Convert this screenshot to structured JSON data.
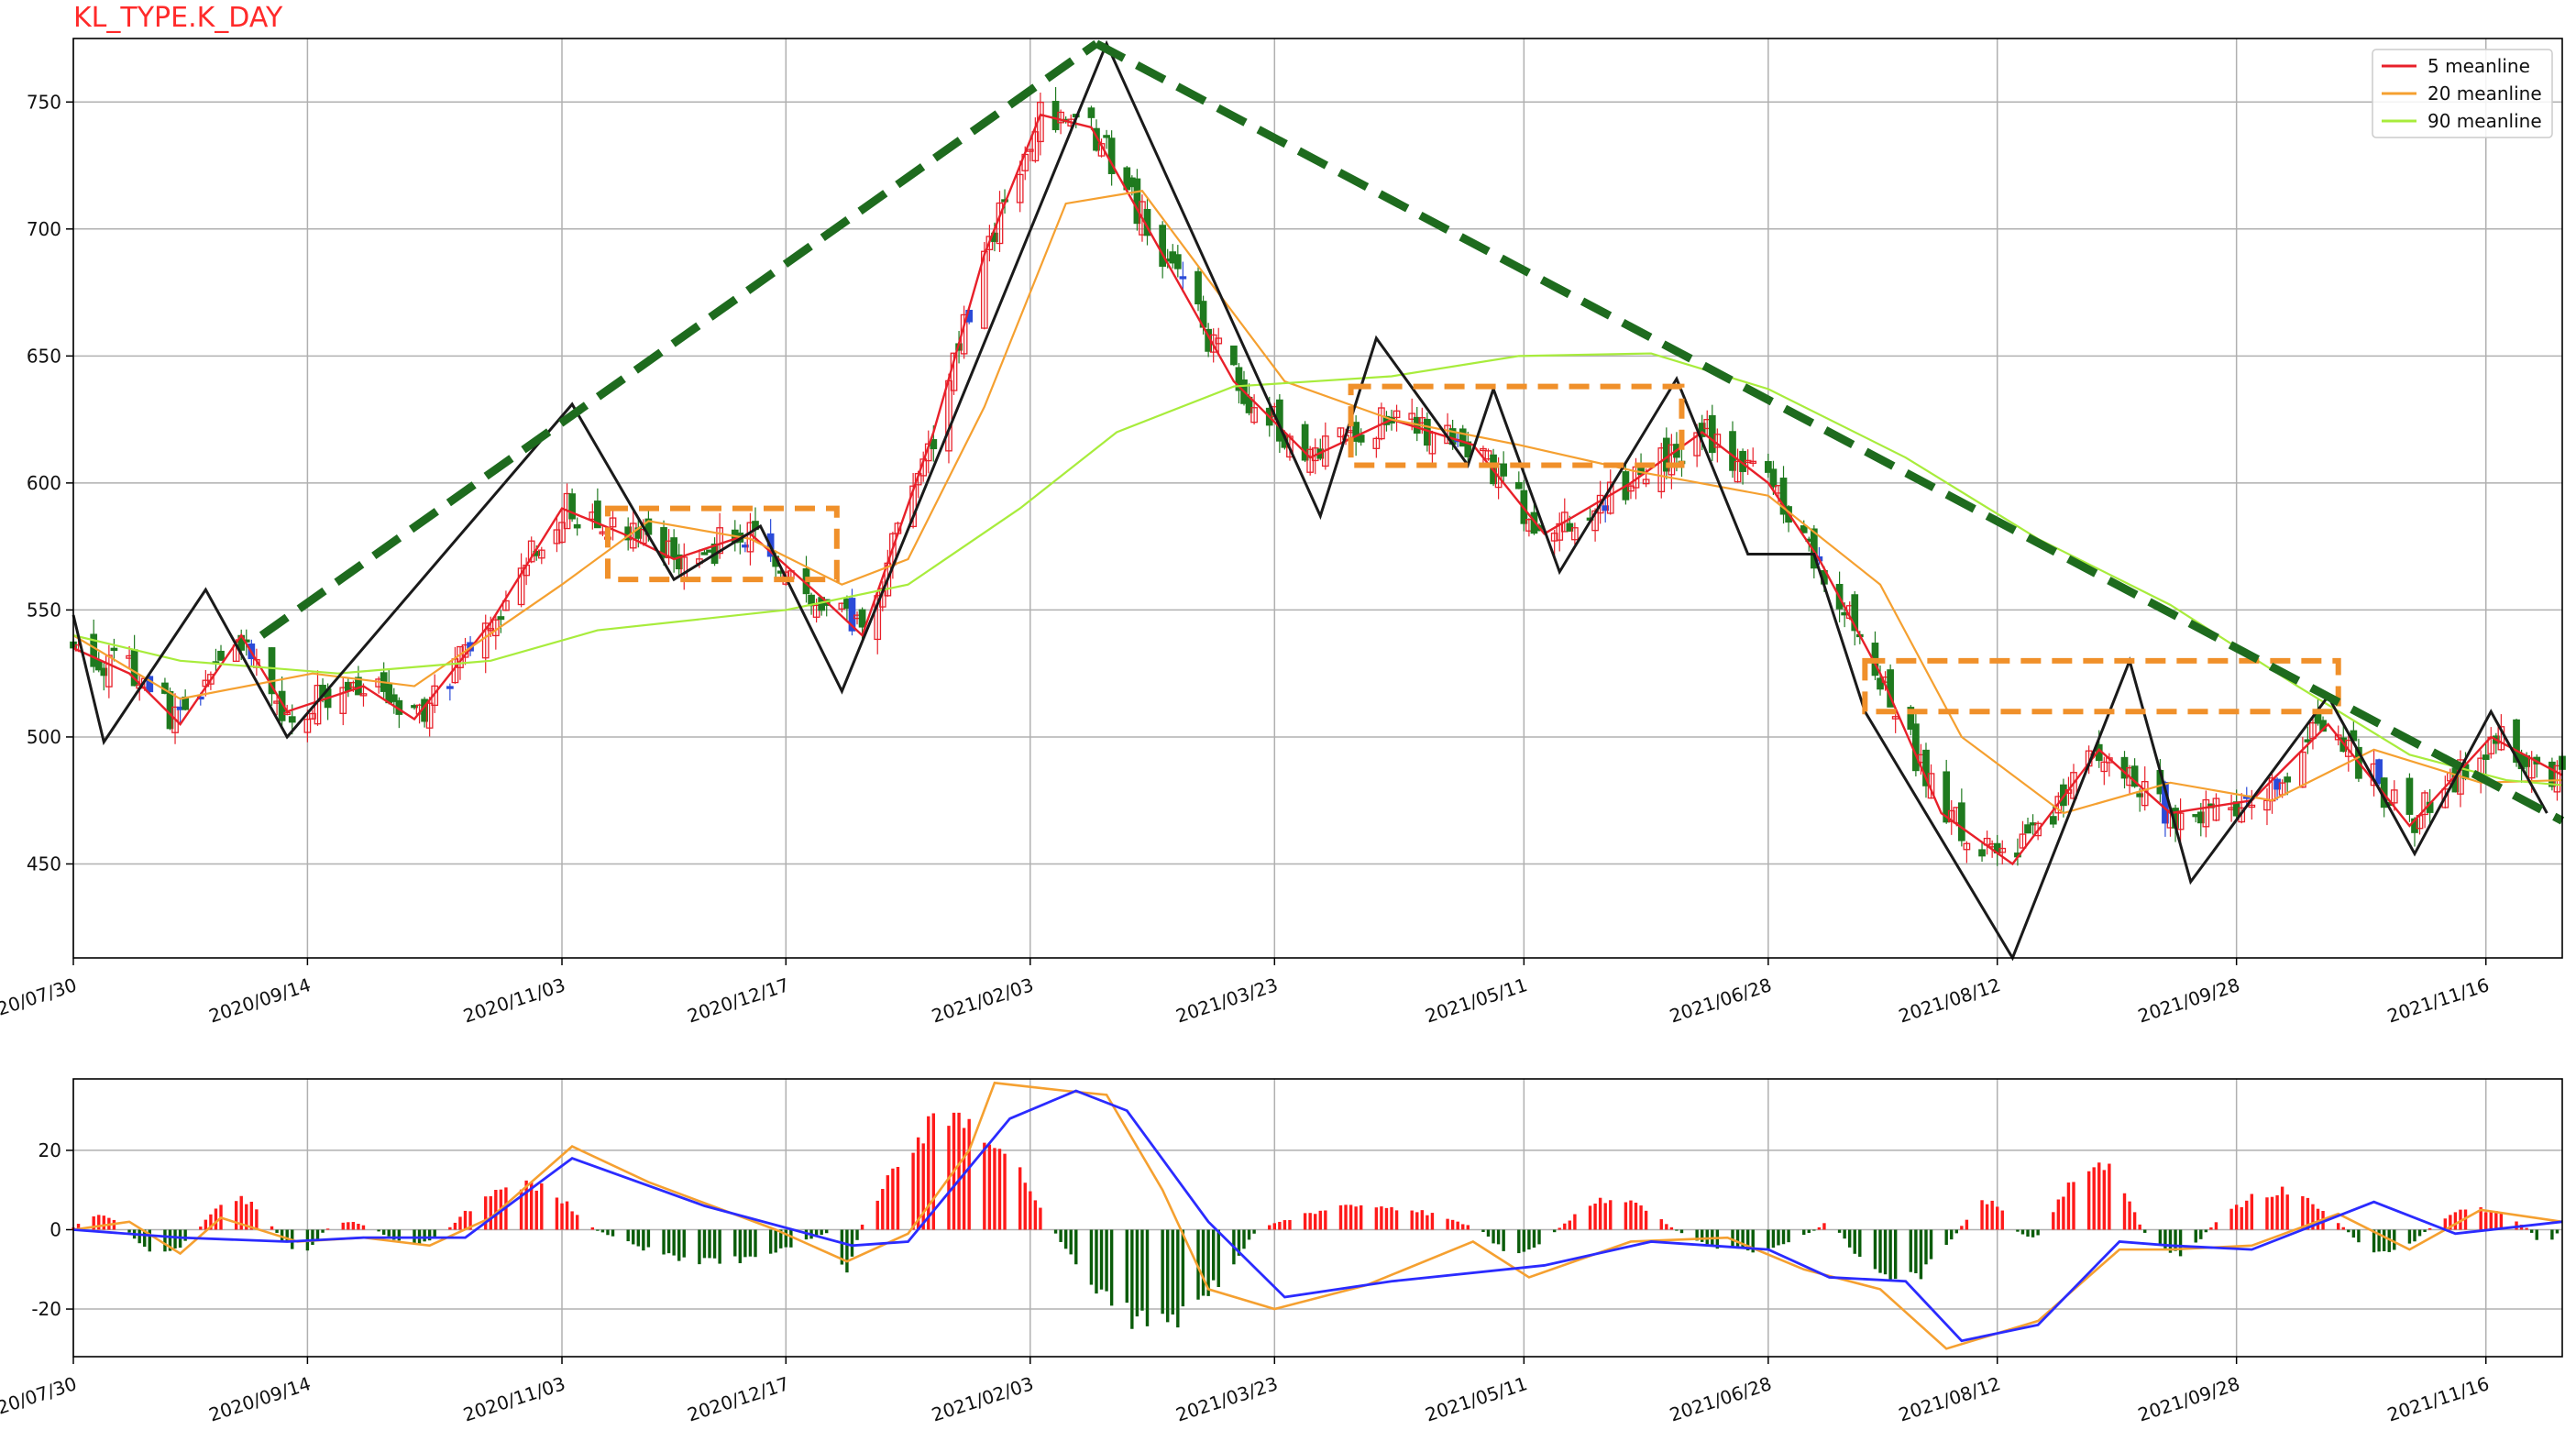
{
  "chart_data": [
    {
      "type": "candlestick",
      "title": "KL_TYPE.K_DAY",
      "x_ticks": [
        "2020/07/30",
        "2020/09/14",
        "2020/11/03",
        "2020/12/17",
        "2021/02/03",
        "2021/03/23",
        "2021/05/11",
        "2021/06/28",
        "2021/08/12",
        "2021/09/28",
        "2021/11/16"
      ],
      "y_ticks": [
        450,
        500,
        550,
        600,
        650,
        700,
        750
      ],
      "ylim": [
        413,
        775
      ],
      "grid": true,
      "legend_position": "top-right",
      "legend": [
        {
          "name": "5 meanline",
          "color": "#e8202a"
        },
        {
          "name": "20 meanline",
          "color": "#f5a030"
        },
        {
          "name": "90 meanline",
          "color": "#a8ec3c"
        }
      ],
      "colors": {
        "up": "#e8202a",
        "down": "#1f7a1f",
        "trend": "#1e6b1e",
        "zigzag": "#1a1a1a",
        "box": "#f0902a"
      },
      "zigzag": [
        {
          "date": "2020/07/30",
          "value": 548
        },
        {
          "date": "2020/08/05",
          "value": 498
        },
        {
          "date": "2020/08/25",
          "value": 558
        },
        {
          "date": "2020/09/10",
          "value": 500
        },
        {
          "date": "2020/11/05",
          "value": 631
        },
        {
          "date": "2020/11/25",
          "value": 562
        },
        {
          "date": "2020/12/12",
          "value": 583
        },
        {
          "date": "2020/12/28",
          "value": 518
        },
        {
          "date": "2021/02/18",
          "value": 773
        },
        {
          "date": "2021/04/01",
          "value": 587
        },
        {
          "date": "2021/04/12",
          "value": 657
        },
        {
          "date": "2021/04/30",
          "value": 607
        },
        {
          "date": "2021/05/05",
          "value": 637
        },
        {
          "date": "2021/05/18",
          "value": 565
        },
        {
          "date": "2021/06/10",
          "value": 641
        },
        {
          "date": "2021/06/24",
          "value": 572
        },
        {
          "date": "2021/07/07",
          "value": 572
        },
        {
          "date": "2021/07/17",
          "value": 510
        },
        {
          "date": "2021/08/15",
          "value": 413
        },
        {
          "date": "2021/09/07",
          "value": 530
        },
        {
          "date": "2021/09/19",
          "value": 443
        },
        {
          "date": "2021/10/16",
          "value": 516
        },
        {
          "date": "2021/11/02",
          "value": 454
        },
        {
          "date": "2021/11/17",
          "value": 510
        },
        {
          "date": "2021/11/28",
          "value": 470
        }
      ],
      "trend_lines": [
        {
          "from": {
            "date": "2020/09/05",
            "value": 540
          },
          "to": {
            "date": "2021/02/16",
            "value": 773
          }
        },
        {
          "from": {
            "date": "2021/02/16",
            "value": 773
          },
          "to": {
            "date": "2021/12/01",
            "value": 467
          }
        }
      ],
      "boxes": [
        {
          "x0": "2020/11/12",
          "x1": "2020/12/27",
          "y0": 562,
          "y1": 590
        },
        {
          "x0": "2021/04/07",
          "x1": "2021/06/11",
          "y0": 607,
          "y1": 638
        },
        {
          "x0": "2021/07/17",
          "x1": "2021/10/18",
          "y0": 510,
          "y1": 530
        }
      ],
      "series": [
        {
          "name": "5 meanline",
          "color": "#e8202a",
          "points": [
            [
              "2020/07/30",
              535
            ],
            [
              "2020/08/10",
              525
            ],
            [
              "2020/08/20",
              505
            ],
            [
              "2020/09/01",
              540
            ],
            [
              "2020/09/10",
              510
            ],
            [
              "2020/09/25",
              520
            ],
            [
              "2020/10/05",
              507
            ],
            [
              "2020/10/20",
              545
            ],
            [
              "2020/11/03",
              590
            ],
            [
              "2020/11/15",
              580
            ],
            [
              "2020/11/25",
              570
            ],
            [
              "2020/12/10",
              580
            ],
            [
              "2020/12/24",
              555
            ],
            [
              "2021/01/01",
              540
            ],
            [
              "2021/01/15",
              620
            ],
            [
              "2021/01/25",
              690
            ],
            [
              "2021/02/05",
              745
            ],
            [
              "2021/02/15",
              740
            ],
            [
              "2021/03/01",
              690
            ],
            [
              "2021/03/15",
              640
            ],
            [
              "2021/03/30",
              610
            ],
            [
              "2021/04/15",
              625
            ],
            [
              "2021/05/01",
              615
            ],
            [
              "2021/05/15",
              580
            ],
            [
              "2021/06/01",
              600
            ],
            [
              "2021/06/15",
              620
            ],
            [
              "2021/06/28",
              600
            ],
            [
              "2021/07/08",
              570
            ],
            [
              "2021/07/20",
              525
            ],
            [
              "2021/08/01",
              470
            ],
            [
              "2021/08/15",
              450
            ],
            [
              "2021/09/01",
              495
            ],
            [
              "2021/09/15",
              470
            ],
            [
              "2021/10/01",
              475
            ],
            [
              "2021/10/16",
              505
            ],
            [
              "2021/11/01",
              465
            ],
            [
              "2021/11/17",
              500
            ],
            [
              "2021/12/01",
              485
            ]
          ]
        },
        {
          "name": "20 meanline",
          "color": "#f5a030",
          "points": [
            [
              "2020/07/30",
              540
            ],
            [
              "2020/08/20",
              515
            ],
            [
              "2020/09/15",
              525
            ],
            [
              "2020/10/05",
              520
            ],
            [
              "2020/11/03",
              560
            ],
            [
              "2020/11/20",
              585
            ],
            [
              "2020/12/10",
              578
            ],
            [
              "2020/12/28",
              560
            ],
            [
              "2021/01/10",
              570
            ],
            [
              "2021/01/25",
              630
            ],
            [
              "2021/02/10",
              710
            ],
            [
              "2021/02/25",
              715
            ],
            [
              "2021/03/10",
              680
            ],
            [
              "2021/03/25",
              640
            ],
            [
              "2021/04/15",
              625
            ],
            [
              "2021/05/10",
              615
            ],
            [
              "2021/06/01",
              605
            ],
            [
              "2021/06/28",
              595
            ],
            [
              "2021/07/20",
              560
            ],
            [
              "2021/08/05",
              500
            ],
            [
              "2021/08/25",
              470
            ],
            [
              "2021/09/15",
              482
            ],
            [
              "2021/10/05",
              475
            ],
            [
              "2021/10/25",
              495
            ],
            [
              "2021/11/15",
              482
            ],
            [
              "2021/12/01",
              483
            ]
          ]
        },
        {
          "name": "90 meanline",
          "color": "#a8ec3c",
          "points": [
            [
              "2020/07/30",
              540
            ],
            [
              "2020/08/20",
              530
            ],
            [
              "2020/09/20",
              525
            ],
            [
              "2020/10/20",
              530
            ],
            [
              "2020/11/10",
              542
            ],
            [
              "2020/12/17",
              550
            ],
            [
              "2021/01/10",
              560
            ],
            [
              "2021/02/01",
              590
            ],
            [
              "2021/02/20",
              620
            ],
            [
              "2021/03/15",
              638
            ],
            [
              "2021/04/15",
              642
            ],
            [
              "2021/05/10",
              650
            ],
            [
              "2021/06/05",
              651
            ],
            [
              "2021/06/28",
              637
            ],
            [
              "2021/07/25",
              610
            ],
            [
              "2021/08/20",
              578
            ],
            [
              "2021/09/15",
              552
            ],
            [
              "2021/10/10",
              520
            ],
            [
              "2021/11/01",
              493
            ],
            [
              "2021/11/20",
              483
            ],
            [
              "2021/12/01",
              481
            ]
          ]
        }
      ]
    },
    {
      "type": "macd",
      "x_ticks": [
        "2020/07/30",
        "2020/09/14",
        "2020/11/03",
        "2020/12/17",
        "2021/02/03",
        "2021/03/23",
        "2021/05/11",
        "2021/06/28",
        "2021/08/12",
        "2021/09/28",
        "2021/11/16"
      ],
      "y_ticks": [
        -20,
        0,
        20
      ],
      "ylim": [
        -32,
        38
      ],
      "grid": true,
      "colors": {
        "pos": "#ff1a1a",
        "neg": "#0a5c0a",
        "dif": "#f5a030",
        "dea": "#2b2bff"
      },
      "histogram": [
        {
          "x0": "2020/07/30",
          "x1": "2020/08/10",
          "peak": 4
        },
        {
          "x0": "2020/08/10",
          "x1": "2020/08/24",
          "peak": -7
        },
        {
          "x0": "2020/08/24",
          "x1": "2020/09/08",
          "peak": 9
        },
        {
          "x0": "2020/09/08",
          "x1": "2020/09/18",
          "peak": -6
        },
        {
          "x0": "2020/09/18",
          "x1": "2020/09/28",
          "peak": 2
        },
        {
          "x0": "2020/09/28",
          "x1": "2020/10/12",
          "peak": -4
        },
        {
          "x0": "2020/10/12",
          "x1": "2020/11/10",
          "peak": 13
        },
        {
          "x0": "2020/11/10",
          "x1": "2020/12/27",
          "peak": -9
        },
        {
          "x0": "2020/12/27",
          "x1": "2021/01/01",
          "peak": -11
        },
        {
          "x0": "2021/01/01",
          "x1": "2021/02/08",
          "peak": 32
        },
        {
          "x0": "2021/02/08",
          "x1": "2021/03/20",
          "peak": -27
        },
        {
          "x0": "2021/03/20",
          "x1": "2021/05/03",
          "peak": 7
        },
        {
          "x0": "2021/05/03",
          "x1": "2021/05/18",
          "peak": -7
        },
        {
          "x0": "2021/05/18",
          "x1": "2021/06/10",
          "peak": 9
        },
        {
          "x0": "2021/06/10",
          "x1": "2021/07/08",
          "peak": -6
        },
        {
          "x0": "2021/07/08",
          "x1": "2021/07/12",
          "peak": 2
        },
        {
          "x0": "2021/07/12",
          "x1": "2021/08/05",
          "peak": -15
        },
        {
          "x0": "2021/08/05",
          "x1": "2021/08/16",
          "peak": 8
        },
        {
          "x0": "2021/08/16",
          "x1": "2021/08/22",
          "peak": -2
        },
        {
          "x0": "2021/08/22",
          "x1": "2021/09/10",
          "peak": 19
        },
        {
          "x0": "2021/09/10",
          "x1": "2021/09/23",
          "peak": -7
        },
        {
          "x0": "2021/09/23",
          "x1": "2021/10/20",
          "peak": 11
        },
        {
          "x0": "2021/10/20",
          "x1": "2021/11/05",
          "peak": -7
        },
        {
          "x0": "2021/11/05",
          "x1": "2021/11/25",
          "peak": 6
        },
        {
          "x0": "2021/11/25",
          "x1": "2021/12/01",
          "peak": -4
        }
      ],
      "dif": [
        [
          "2020/07/30",
          0
        ],
        [
          "2020/08/10",
          2
        ],
        [
          "2020/08/20",
          -6
        ],
        [
          "2020/08/28",
          3
        ],
        [
          "2020/09/12",
          -3
        ],
        [
          "2020/09/25",
          -2
        ],
        [
          "2020/10/08",
          -4
        ],
        [
          "2020/10/20",
          3
        ],
        [
          "2020/11/05",
          21
        ],
        [
          "2020/11/20",
          12
        ],
        [
          "2020/12/15",
          0
        ],
        [
          "2020/12/29",
          -8
        ],
        [
          "2021/01/10",
          -1
        ],
        [
          "2021/01/22",
          20
        ],
        [
          "2021/01/27",
          37
        ],
        [
          "2021/02/10",
          35
        ],
        [
          "2021/02/18",
          34
        ],
        [
          "2021/03/01",
          10
        ],
        [
          "2021/03/10",
          -15
        ],
        [
          "2021/03/23",
          -20
        ],
        [
          "2021/04/10",
          -14
        ],
        [
          "2021/05/01",
          -3
        ],
        [
          "2021/05/12",
          -12
        ],
        [
          "2021/06/01",
          -3
        ],
        [
          "2021/06/20",
          -2
        ],
        [
          "2021/07/05",
          -10
        ],
        [
          "2021/07/20",
          -15
        ],
        [
          "2021/08/02",
          -30
        ],
        [
          "2021/08/20",
          -23
        ],
        [
          "2021/09/05",
          -5
        ],
        [
          "2021/09/15",
          -5
        ],
        [
          "2021/10/01",
          -4
        ],
        [
          "2021/10/18",
          4
        ],
        [
          "2021/11/01",
          -5
        ],
        [
          "2021/11/15",
          5
        ],
        [
          "2021/12/01",
          2
        ]
      ],
      "dea": [
        [
          "2020/07/30",
          0
        ],
        [
          "2020/08/20",
          -2
        ],
        [
          "2020/09/10",
          -3
        ],
        [
          "2020/09/25",
          -2
        ],
        [
          "2020/10/15",
          -2
        ],
        [
          "2020/11/05",
          18
        ],
        [
          "2020/12/01",
          6
        ],
        [
          "2020/12/30",
          -4
        ],
        [
          "2021/01/10",
          -3
        ],
        [
          "2021/01/30",
          28
        ],
        [
          "2021/02/12",
          35
        ],
        [
          "2021/02/22",
          30
        ],
        [
          "2021/03/10",
          2
        ],
        [
          "2021/03/25",
          -17
        ],
        [
          "2021/04/15",
          -13
        ],
        [
          "2021/05/15",
          -9
        ],
        [
          "2021/06/05",
          -3
        ],
        [
          "2021/06/28",
          -5
        ],
        [
          "2021/07/10",
          -12
        ],
        [
          "2021/07/25",
          -13
        ],
        [
          "2021/08/05",
          -28
        ],
        [
          "2021/08/20",
          -24
        ],
        [
          "2021/09/05",
          -3
        ],
        [
          "2021/09/15",
          -4
        ],
        [
          "2021/10/01",
          -5
        ],
        [
          "2021/10/25",
          7
        ],
        [
          "2021/11/10",
          -1
        ],
        [
          "2021/12/01",
          2
        ]
      ]
    }
  ]
}
